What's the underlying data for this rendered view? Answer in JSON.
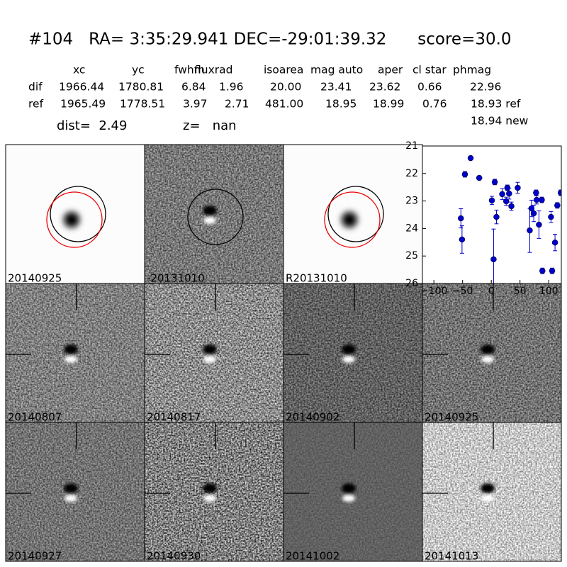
{
  "header": {
    "title": "#104   RA= 3:35:29.941 DEC=-29:01:39.32      score=30.0",
    "dist": "dist=  2.49",
    "z": "z=   nan"
  },
  "table": {
    "columns": [
      "xc",
      "yc",
      "fwhm",
      "fluxrad",
      "isoarea",
      "mag auto",
      "aper",
      "cl star",
      "phmag"
    ],
    "rows": [
      [
        "dif",
        "1966.44",
        "1780.81",
        "6.84",
        "1.96",
        "20.00",
        "23.41",
        "23.62",
        "0.66",
        "22.96"
      ],
      [
        "ref",
        "1965.49",
        "1778.51",
        "3.97",
        "2.71",
        "481.00",
        "18.95",
        "18.99",
        "0.76",
        "18.93 ref"
      ]
    ],
    "new": "18.94 new"
  },
  "panels": [
    "20140925",
    "-20131010",
    "R20131010",
    "20140807",
    "20140817",
    "20140902",
    "20140925",
    "20140927",
    "20140930",
    "20141002",
    "20141013"
  ],
  "chart_data": {
    "type": "scatter",
    "xlim": [
      -120,
      122
    ],
    "ylim": [
      26,
      21
    ],
    "xticks": [
      {
        "value": -100,
        "label": "−100"
      },
      {
        "value": -50,
        "label": "−50"
      },
      0,
      50,
      100
    ],
    "yticks": [
      21,
      22,
      23,
      24,
      25,
      26
    ],
    "series": [
      {
        "color": "#0000cc",
        "x": [
          -53,
          -51,
          -46,
          -36,
          -21,
          1,
          6,
          4,
          9,
          19,
          26,
          28,
          31,
          35,
          46,
          67,
          70,
          74,
          78,
          79,
          83,
          88,
          89,
          104,
          106,
          111,
          115,
          121
        ],
        "values": [
          23.63,
          24.4,
          22.03,
          21.44,
          22.16,
          22.98,
          22.31,
          25.12,
          23.58,
          22.75,
          23.01,
          22.52,
          22.73,
          23.19,
          22.52,
          24.07,
          23.27,
          23.45,
          22.7,
          22.96,
          23.86,
          22.96,
          25.54,
          23.58,
          25.54,
          24.51,
          23.16,
          22.7
        ],
        "errors": [
          0.35,
          0.5,
          0.1,
          0.05,
          0.05,
          0.15,
          0.1,
          1.1,
          0.25,
          0.2,
          0.15,
          0.1,
          0.2,
          0.15,
          0.2,
          0.8,
          0.3,
          0.3,
          0.1,
          0.15,
          0.5,
          0.1,
          0.1,
          0.2,
          0.1,
          0.3,
          0.1,
          0.1
        ]
      }
    ]
  }
}
